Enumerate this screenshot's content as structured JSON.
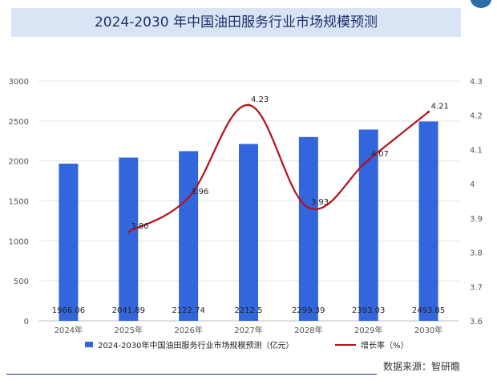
{
  "chart_data": {
    "type": "bar",
    "title": "2024-2030 年中国油田服务行业市场规模预测",
    "categories": [
      "2024年",
      "2025年",
      "2026年",
      "2027年",
      "2028年",
      "2029年",
      "2030年"
    ],
    "series": [
      {
        "name": "2024-2030年中国油田服务行业市场规模预测（亿元）",
        "type": "bar",
        "axis": "left",
        "color": "#3366dd",
        "values": [
          1966.06,
          2041.89,
          2122.74,
          2212.5,
          2299.39,
          2393.03,
          2493.85
        ],
        "labels": [
          "1966.06",
          "2041.89",
          "2122.74",
          "2212.5",
          "2299.39",
          "2393.03",
          "2493.85"
        ]
      },
      {
        "name": "增长率（%）",
        "type": "line",
        "axis": "right",
        "color": "#b5121b",
        "values": [
          null,
          3.86,
          3.96,
          4.23,
          3.93,
          4.07,
          4.21
        ],
        "labels": [
          "",
          "3.86",
          "3.96",
          "4.23",
          "3.93",
          "4.07",
          "4.21"
        ]
      }
    ],
    "y_left": {
      "min": 0,
      "max": 3000,
      "ticks": [
        "0",
        "500",
        "1000",
        "1500",
        "2000",
        "2500",
        "3000"
      ]
    },
    "y_right": {
      "min": 3.6,
      "max": 4.3,
      "ticks": [
        "3.6",
        "3.7",
        "3.8",
        "3.9",
        "4",
        "4.1",
        "4.2",
        "4.3"
      ]
    },
    "grid": true,
    "legend_position": "bottom"
  },
  "source": "数据来源：智研瞻"
}
